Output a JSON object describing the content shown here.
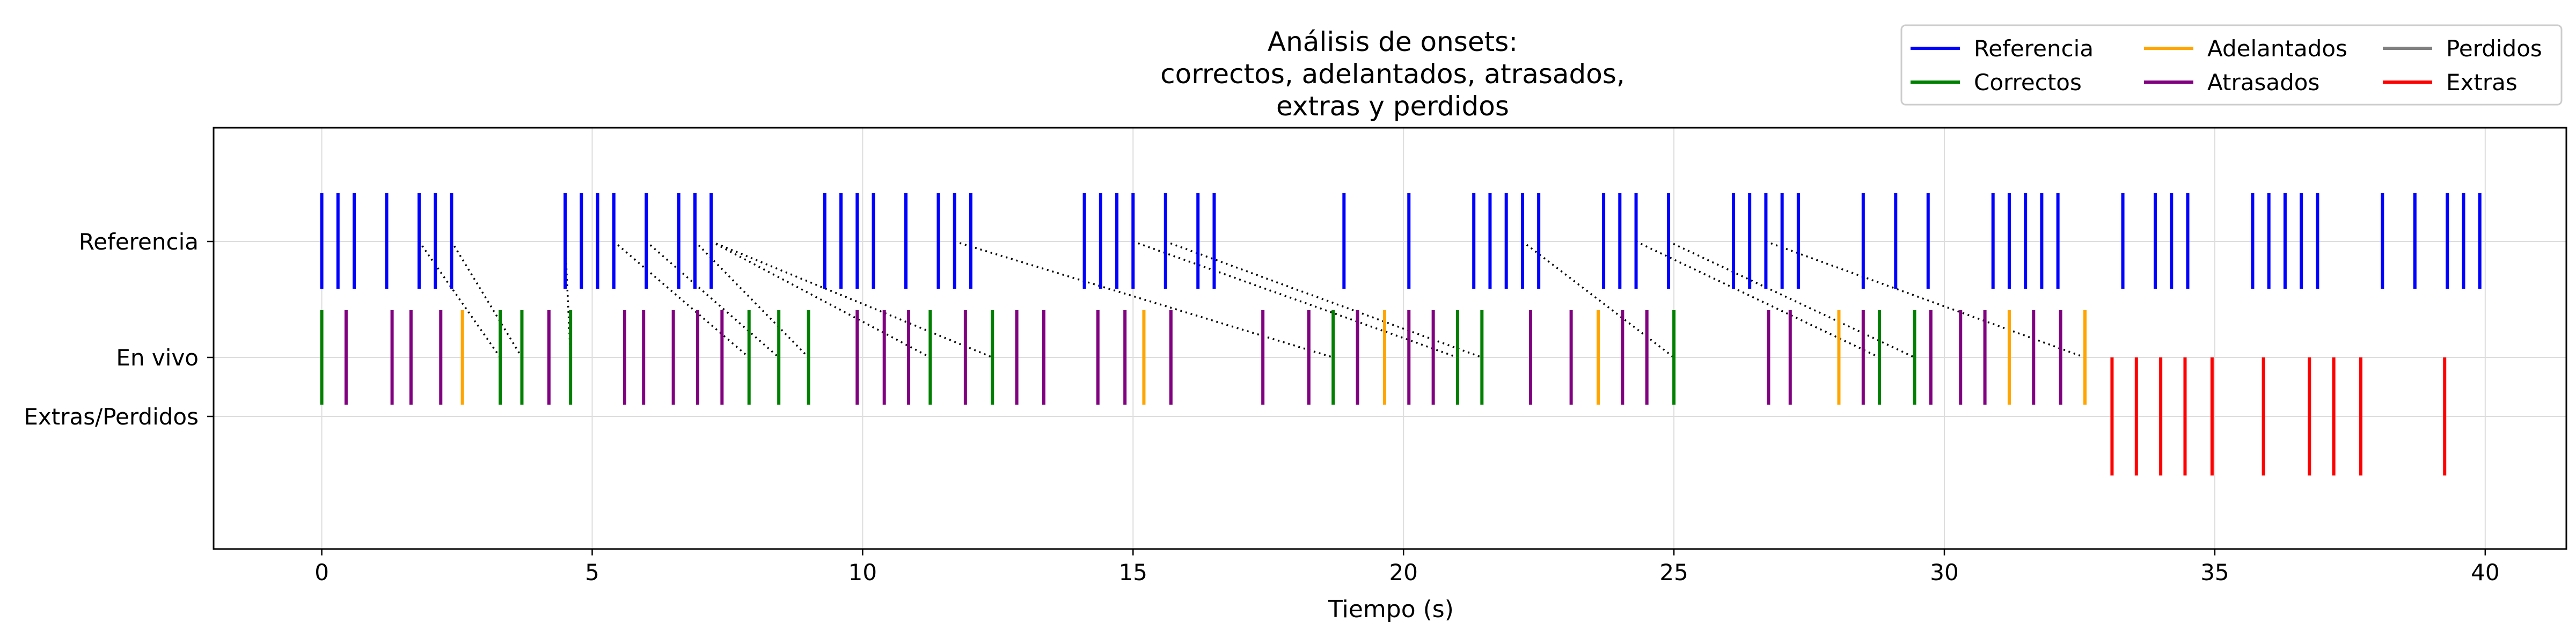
{
  "chart_data": {
    "type": "event_raster",
    "title_lines": [
      "Análisis de onsets:",
      "correctos, adelantados, atrasados,",
      "extras y perdidos"
    ],
    "xlabel": "Tiempo (s)",
    "xlim": [
      -2,
      41.5
    ],
    "xticks": [
      0,
      5,
      10,
      15,
      20,
      25,
      30,
      35,
      40
    ],
    "grid": true,
    "legend_position": "top-right",
    "rows": [
      {
        "label": "Referencia",
        "y": 2.0
      },
      {
        "label": "En vivo",
        "y": 1.0
      },
      {
        "label": "Extras/Perdidos",
        "y": 0.5
      }
    ],
    "colors": {
      "reference": "#0000ff",
      "correct": "#008000",
      "early": "#ffa500",
      "late": "#800080",
      "missed": "#808080",
      "extra": "#ff0000",
      "connector": "#000000"
    },
    "legend": [
      {
        "label": "Referencia",
        "color": "#0000ff"
      },
      {
        "label": "Correctos",
        "color": "#008000"
      },
      {
        "label": "Adelantados",
        "color": "#ffa500"
      },
      {
        "label": "Atrasados",
        "color": "#800080"
      },
      {
        "label": "Perdidos",
        "color": "#808080"
      },
      {
        "label": "Extras",
        "color": "#ff0000"
      }
    ],
    "series": {
      "reference": [
        0.0,
        0.3,
        0.6,
        1.2,
        1.8,
        2.1,
        2.4,
        4.5,
        4.8,
        5.1,
        5.4,
        6.0,
        6.6,
        6.9,
        7.2,
        9.3,
        9.6,
        9.9,
        10.2,
        10.8,
        11.4,
        11.7,
        12.0,
        14.1,
        14.4,
        14.7,
        15.0,
        15.6,
        16.2,
        16.5,
        18.9,
        20.1,
        21.3,
        21.6,
        21.9,
        22.2,
        22.5,
        23.7,
        24.0,
        24.3,
        24.9,
        26.1,
        26.4,
        26.7,
        27.0,
        27.3,
        28.5,
        29.1,
        29.7,
        30.9,
        31.2,
        31.5,
        31.8,
        32.1,
        33.3,
        33.9,
        34.2,
        34.5,
        35.7,
        36.0,
        36.3,
        36.6,
        36.9,
        38.1,
        38.7,
        39.3,
        39.6,
        39.9
      ],
      "live": [
        {
          "t": 0.0,
          "status": "correct"
        },
        {
          "t": 0.45,
          "status": "late"
        },
        {
          "t": 1.3,
          "status": "late"
        },
        {
          "t": 1.65,
          "status": "late"
        },
        {
          "t": 2.2,
          "status": "late"
        },
        {
          "t": 2.6,
          "status": "early"
        },
        {
          "t": 3.3,
          "status": "correct"
        },
        {
          "t": 3.7,
          "status": "correct"
        },
        {
          "t": 4.2,
          "status": "late"
        },
        {
          "t": 4.6,
          "status": "correct"
        },
        {
          "t": 5.6,
          "status": "late"
        },
        {
          "t": 5.95,
          "status": "late"
        },
        {
          "t": 6.5,
          "status": "late"
        },
        {
          "t": 6.95,
          "status": "late"
        },
        {
          "t": 7.4,
          "status": "late"
        },
        {
          "t": 7.9,
          "status": "correct"
        },
        {
          "t": 8.45,
          "status": "correct"
        },
        {
          "t": 9.0,
          "status": "correct"
        },
        {
          "t": 9.9,
          "status": "late"
        },
        {
          "t": 10.4,
          "status": "late"
        },
        {
          "t": 10.85,
          "status": "late"
        },
        {
          "t": 11.25,
          "status": "correct"
        },
        {
          "t": 11.9,
          "status": "late"
        },
        {
          "t": 12.4,
          "status": "correct"
        },
        {
          "t": 12.85,
          "status": "late"
        },
        {
          "t": 13.35,
          "status": "late"
        },
        {
          "t": 14.35,
          "status": "late"
        },
        {
          "t": 14.85,
          "status": "late"
        },
        {
          "t": 15.2,
          "status": "early"
        },
        {
          "t": 15.7,
          "status": "late"
        },
        {
          "t": 17.4,
          "status": "late"
        },
        {
          "t": 18.25,
          "status": "late"
        },
        {
          "t": 18.7,
          "status": "correct"
        },
        {
          "t": 19.15,
          "status": "late"
        },
        {
          "t": 19.65,
          "status": "early"
        },
        {
          "t": 20.1,
          "status": "late"
        },
        {
          "t": 20.55,
          "status": "late"
        },
        {
          "t": 21.0,
          "status": "correct"
        },
        {
          "t": 21.45,
          "status": "correct"
        },
        {
          "t": 22.35,
          "status": "late"
        },
        {
          "t": 23.1,
          "status": "late"
        },
        {
          "t": 23.6,
          "status": "early"
        },
        {
          "t": 24.05,
          "status": "late"
        },
        {
          "t": 24.5,
          "status": "late"
        },
        {
          "t": 25.0,
          "status": "correct"
        },
        {
          "t": 26.75,
          "status": "late"
        },
        {
          "t": 27.15,
          "status": "late"
        },
        {
          "t": 28.05,
          "status": "early"
        },
        {
          "t": 28.5,
          "status": "late"
        },
        {
          "t": 28.8,
          "status": "correct"
        },
        {
          "t": 29.45,
          "status": "correct"
        },
        {
          "t": 29.75,
          "status": "late"
        },
        {
          "t": 30.3,
          "status": "late"
        },
        {
          "t": 30.75,
          "status": "late"
        },
        {
          "t": 31.2,
          "status": "early"
        },
        {
          "t": 31.65,
          "status": "late"
        },
        {
          "t": 32.15,
          "status": "late"
        },
        {
          "t": 32.6,
          "status": "early"
        }
      ],
      "extras": [
        33.1,
        33.55,
        34.0,
        34.45,
        34.95,
        35.9,
        36.75,
        37.2,
        37.7,
        39.25
      ],
      "connectors": [
        {
          "ref": 1.8,
          "live": 3.3
        },
        {
          "ref": 2.4,
          "live": 3.7
        },
        {
          "ref": 4.5,
          "live": 4.6
        },
        {
          "ref": 5.4,
          "live": 7.9
        },
        {
          "ref": 6.0,
          "live": 8.45
        },
        {
          "ref": 6.9,
          "live": 9.0
        },
        {
          "ref": 7.2,
          "live": 11.25
        },
        {
          "ref": 7.2,
          "live": 12.4
        },
        {
          "ref": 11.7,
          "live": 18.7
        },
        {
          "ref": 15.0,
          "live": 21.0
        },
        {
          "ref": 15.6,
          "live": 21.45
        },
        {
          "ref": 22.2,
          "live": 25.0
        },
        {
          "ref": 24.3,
          "live": 28.8
        },
        {
          "ref": 24.9,
          "live": 29.45
        },
        {
          "ref": 26.7,
          "live": 32.6
        }
      ]
    }
  }
}
